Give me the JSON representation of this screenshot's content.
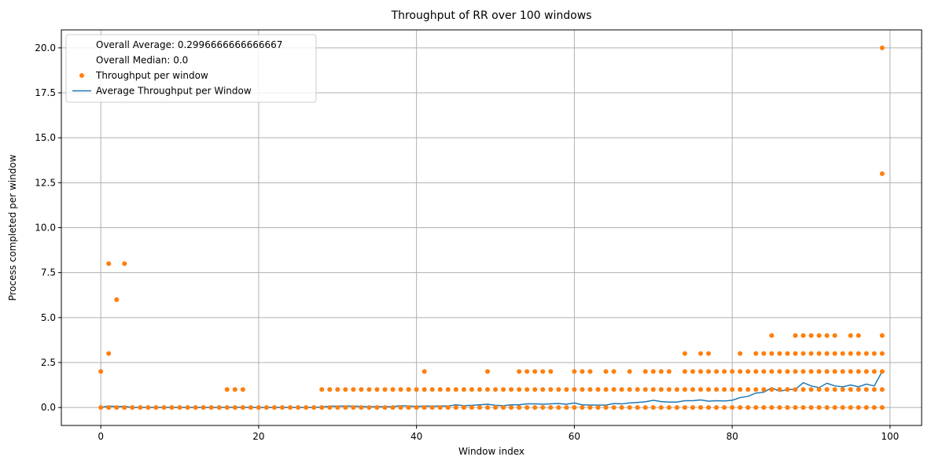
{
  "chart_data": {
    "type": "scatter",
    "title": "Throughput of RR over 100 windows",
    "xlabel": "Window index",
    "ylabel": "Process completed per window",
    "xlim": [
      -5,
      104
    ],
    "ylim": [
      -1,
      21
    ],
    "xticks": [
      0,
      20,
      40,
      60,
      80,
      100
    ],
    "yticks": [
      0.0,
      2.5,
      5.0,
      7.5,
      10.0,
      12.5,
      15.0,
      17.5,
      20.0
    ],
    "grid": true,
    "legend_position": "top-left",
    "legend": [
      {
        "label": "Overall Average: 0.2996666666666667",
        "kind": "none"
      },
      {
        "label": "Overall Median: 0.0",
        "kind": "none"
      },
      {
        "label": "Throughput per window",
        "kind": "scatter"
      },
      {
        "label": "Average Throughput per Window",
        "kind": "line"
      }
    ],
    "colors": {
      "scatter": "#ff7f0e",
      "line": "#1f77b4",
      "grid": "#b0b0b0"
    },
    "scatter_series": {
      "name": "Throughput per window",
      "windows": [
        {
          "x": 0,
          "values": [
            0,
            2
          ]
        },
        {
          "x": 1,
          "values": [
            0,
            3,
            8
          ]
        },
        {
          "x": 2,
          "values": [
            0,
            6
          ]
        },
        {
          "x": 3,
          "values": [
            0,
            8
          ]
        },
        {
          "x": 4,
          "values": [
            0
          ]
        },
        {
          "x": 5,
          "values": [
            0
          ]
        },
        {
          "x": 6,
          "values": [
            0
          ]
        },
        {
          "x": 7,
          "values": [
            0
          ]
        },
        {
          "x": 8,
          "values": [
            0
          ]
        },
        {
          "x": 9,
          "values": [
            0
          ]
        },
        {
          "x": 10,
          "values": [
            0
          ]
        },
        {
          "x": 11,
          "values": [
            0
          ]
        },
        {
          "x": 12,
          "values": [
            0
          ]
        },
        {
          "x": 13,
          "values": [
            0
          ]
        },
        {
          "x": 14,
          "values": [
            0
          ]
        },
        {
          "x": 15,
          "values": [
            0
          ]
        },
        {
          "x": 16,
          "values": [
            0,
            1
          ]
        },
        {
          "x": 17,
          "values": [
            0,
            1
          ]
        },
        {
          "x": 18,
          "values": [
            0,
            1
          ]
        },
        {
          "x": 19,
          "values": [
            0
          ]
        },
        {
          "x": 20,
          "values": [
            0
          ]
        },
        {
          "x": 21,
          "values": [
            0
          ]
        },
        {
          "x": 22,
          "values": [
            0
          ]
        },
        {
          "x": 23,
          "values": [
            0
          ]
        },
        {
          "x": 24,
          "values": [
            0
          ]
        },
        {
          "x": 25,
          "values": [
            0
          ]
        },
        {
          "x": 26,
          "values": [
            0
          ]
        },
        {
          "x": 27,
          "values": [
            0
          ]
        },
        {
          "x": 28,
          "values": [
            0,
            1
          ]
        },
        {
          "x": 29,
          "values": [
            0,
            1
          ]
        },
        {
          "x": 30,
          "values": [
            0,
            1
          ]
        },
        {
          "x": 31,
          "values": [
            0,
            1
          ]
        },
        {
          "x": 32,
          "values": [
            0,
            1
          ]
        },
        {
          "x": 33,
          "values": [
            0,
            1
          ]
        },
        {
          "x": 34,
          "values": [
            0,
            1
          ]
        },
        {
          "x": 35,
          "values": [
            0,
            1
          ]
        },
        {
          "x": 36,
          "values": [
            0,
            1
          ]
        },
        {
          "x": 37,
          "values": [
            0,
            1
          ]
        },
        {
          "x": 38,
          "values": [
            0,
            1
          ]
        },
        {
          "x": 39,
          "values": [
            0,
            1
          ]
        },
        {
          "x": 40,
          "values": [
            0,
            1
          ]
        },
        {
          "x": 41,
          "values": [
            0,
            1,
            2
          ]
        },
        {
          "x": 42,
          "values": [
            0,
            1
          ]
        },
        {
          "x": 43,
          "values": [
            0,
            1
          ]
        },
        {
          "x": 44,
          "values": [
            0,
            1
          ]
        },
        {
          "x": 45,
          "values": [
            0,
            1
          ]
        },
        {
          "x": 46,
          "values": [
            0,
            1
          ]
        },
        {
          "x": 47,
          "values": [
            0,
            1
          ]
        },
        {
          "x": 48,
          "values": [
            0,
            1
          ]
        },
        {
          "x": 49,
          "values": [
            0,
            1,
            2
          ]
        },
        {
          "x": 50,
          "values": [
            0,
            1
          ]
        },
        {
          "x": 51,
          "values": [
            0,
            1
          ]
        },
        {
          "x": 52,
          "values": [
            0,
            1
          ]
        },
        {
          "x": 53,
          "values": [
            0,
            1,
            2
          ]
        },
        {
          "x": 54,
          "values": [
            0,
            1,
            2
          ]
        },
        {
          "x": 55,
          "values": [
            0,
            1,
            2
          ]
        },
        {
          "x": 56,
          "values": [
            0,
            1,
            2
          ]
        },
        {
          "x": 57,
          "values": [
            0,
            1,
            2
          ]
        },
        {
          "x": 58,
          "values": [
            0,
            1
          ]
        },
        {
          "x": 59,
          "values": [
            0,
            1
          ]
        },
        {
          "x": 60,
          "values": [
            0,
            1,
            2
          ]
        },
        {
          "x": 61,
          "values": [
            0,
            1,
            2
          ]
        },
        {
          "x": 62,
          "values": [
            0,
            1,
            2
          ]
        },
        {
          "x": 63,
          "values": [
            0,
            1
          ]
        },
        {
          "x": 64,
          "values": [
            0,
            1,
            2
          ]
        },
        {
          "x": 65,
          "values": [
            0,
            1,
            2
          ]
        },
        {
          "x": 66,
          "values": [
            0,
            1
          ]
        },
        {
          "x": 67,
          "values": [
            0,
            1,
            2
          ]
        },
        {
          "x": 68,
          "values": [
            0,
            1
          ]
        },
        {
          "x": 69,
          "values": [
            0,
            1,
            2
          ]
        },
        {
          "x": 70,
          "values": [
            0,
            1,
            2
          ]
        },
        {
          "x": 71,
          "values": [
            0,
            1,
            2
          ]
        },
        {
          "x": 72,
          "values": [
            0,
            1,
            2
          ]
        },
        {
          "x": 73,
          "values": [
            0,
            1
          ]
        },
        {
          "x": 74,
          "values": [
            0,
            1,
            2,
            3
          ]
        },
        {
          "x": 75,
          "values": [
            0,
            1,
            2
          ]
        },
        {
          "x": 76,
          "values": [
            0,
            1,
            2,
            3
          ]
        },
        {
          "x": 77,
          "values": [
            0,
            1,
            2,
            3
          ]
        },
        {
          "x": 78,
          "values": [
            0,
            1,
            2
          ]
        },
        {
          "x": 79,
          "values": [
            0,
            1,
            2
          ]
        },
        {
          "x": 80,
          "values": [
            0,
            1,
            2
          ]
        },
        {
          "x": 81,
          "values": [
            0,
            1,
            2,
            3
          ]
        },
        {
          "x": 82,
          "values": [
            0,
            1,
            2
          ]
        },
        {
          "x": 83,
          "values": [
            0,
            1,
            2,
            3
          ]
        },
        {
          "x": 84,
          "values": [
            0,
            1,
            2,
            3
          ]
        },
        {
          "x": 85,
          "values": [
            0,
            1,
            2,
            3,
            4
          ]
        },
        {
          "x": 86,
          "values": [
            0,
            1,
            2,
            3
          ]
        },
        {
          "x": 87,
          "values": [
            0,
            1,
            2,
            3
          ]
        },
        {
          "x": 88,
          "values": [
            0,
            1,
            2,
            3,
            4
          ]
        },
        {
          "x": 89,
          "values": [
            0,
            1,
            2,
            3,
            4
          ]
        },
        {
          "x": 90,
          "values": [
            0,
            1,
            2,
            3,
            4
          ]
        },
        {
          "x": 91,
          "values": [
            0,
            1,
            2,
            3,
            4
          ]
        },
        {
          "x": 92,
          "values": [
            0,
            1,
            2,
            3,
            4
          ]
        },
        {
          "x": 93,
          "values": [
            0,
            1,
            2,
            3,
            4
          ]
        },
        {
          "x": 94,
          "values": [
            0,
            1,
            2,
            3
          ]
        },
        {
          "x": 95,
          "values": [
            0,
            1,
            2,
            3,
            4
          ]
        },
        {
          "x": 96,
          "values": [
            0,
            1,
            2,
            3,
            4
          ]
        },
        {
          "x": 97,
          "values": [
            0,
            1,
            2,
            3
          ]
        },
        {
          "x": 98,
          "values": [
            0,
            1,
            2,
            3
          ]
        },
        {
          "x": 99,
          "values": [
            0,
            1,
            2,
            3,
            4,
            13,
            20
          ]
        }
      ]
    },
    "line_series": {
      "name": "Average Throughput per Window",
      "x": [
        0,
        1,
        2,
        3,
        4,
        5,
        6,
        7,
        8,
        9,
        10,
        11,
        12,
        13,
        14,
        15,
        16,
        17,
        18,
        19,
        20,
        21,
        22,
        23,
        24,
        25,
        26,
        27,
        28,
        29,
        30,
        31,
        32,
        33,
        34,
        35,
        36,
        37,
        38,
        39,
        40,
        41,
        42,
        43,
        44,
        45,
        46,
        47,
        48,
        49,
        50,
        51,
        52,
        53,
        54,
        55,
        56,
        57,
        58,
        59,
        60,
        61,
        62,
        63,
        64,
        65,
        66,
        67,
        68,
        69,
        70,
        71,
        72,
        73,
        74,
        75,
        76,
        77,
        78,
        79,
        80,
        81,
        82,
        83,
        84,
        85,
        86,
        87,
        88,
        89,
        90,
        91,
        92,
        93,
        94,
        95,
        96,
        97,
        98,
        99
      ],
      "y": [
        0.0,
        0.08,
        0.05,
        0.06,
        0.0,
        0.0,
        0.0,
        0.0,
        0.0,
        0.0,
        0.0,
        0.0,
        0.0,
        0.0,
        0.0,
        0.0,
        0.01,
        0.01,
        0.01,
        0.0,
        0.0,
        0.0,
        0.0,
        0.0,
        0.0,
        0.0,
        0.0,
        0.0,
        0.03,
        0.07,
        0.07,
        0.08,
        0.07,
        0.06,
        0.04,
        0.05,
        0.04,
        0.05,
        0.1,
        0.08,
        0.06,
        0.08,
        0.07,
        0.08,
        0.08,
        0.15,
        0.1,
        0.12,
        0.15,
        0.18,
        0.12,
        0.1,
        0.15,
        0.15,
        0.2,
        0.2,
        0.18,
        0.2,
        0.22,
        0.18,
        0.25,
        0.15,
        0.14,
        0.13,
        0.13,
        0.22,
        0.2,
        0.25,
        0.28,
        0.32,
        0.4,
        0.33,
        0.3,
        0.3,
        0.38,
        0.38,
        0.42,
        0.35,
        0.38,
        0.36,
        0.4,
        0.55,
        0.62,
        0.8,
        0.85,
        1.1,
        0.9,
        1.0,
        1.0,
        1.38,
        1.2,
        1.1,
        1.35,
        1.2,
        1.15,
        1.25,
        1.15,
        1.3,
        1.2,
        2.0
      ]
    }
  }
}
